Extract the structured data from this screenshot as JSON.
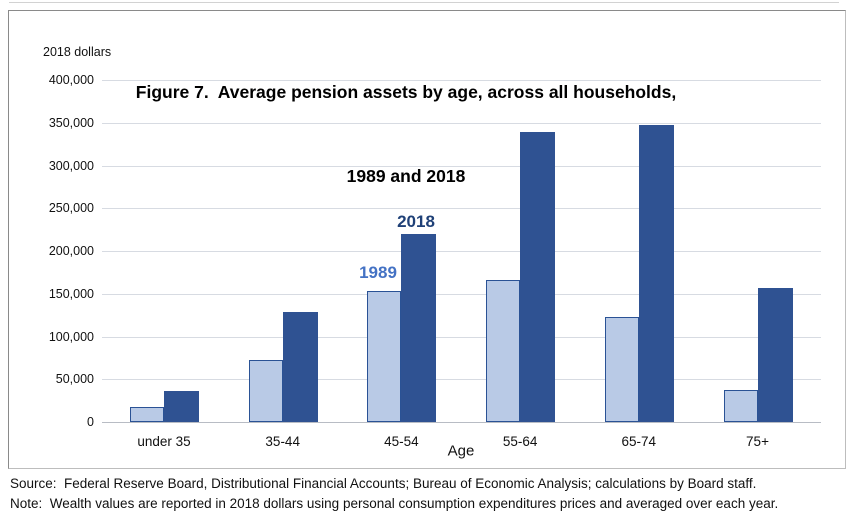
{
  "chart": {
    "title_line1": "Figure 7.  Average pension assets by age, across all households,",
    "title_line2": "1989 and 2018",
    "y_unit_label": "2018 dollars"
  },
  "chart_data": {
    "type": "bar",
    "title": "Figure 7. Average pension assets by age, across all households, 1989 and 2018",
    "xlabel": "Age",
    "ylabel": "2018 dollars",
    "categories": [
      "under 35",
      "35-44",
      "45-54",
      "55-64",
      "65-74",
      "75+"
    ],
    "series": [
      {
        "name": "1989",
        "values": [
          17000,
          73000,
          153000,
          166000,
          123000,
          37000
        ]
      },
      {
        "name": "2018",
        "values": [
          36000,
          129000,
          220000,
          339000,
          347000,
          157000
        ]
      }
    ],
    "ylim": [
      0,
      400000
    ],
    "ytick_step": 50000,
    "ytick_labels": [
      "0",
      "50,000",
      "100,000",
      "150,000",
      "200,000",
      "250,000",
      "300,000",
      "350,000",
      "400,000"
    ],
    "grid": true,
    "legend_position": "inline labels above the 45-54 bars"
  },
  "colors": {
    "series_1989_fill": "#b9cae6",
    "series_1989_border": "#2a5295",
    "series_2018_fill": "#2f5292",
    "series_1989_label_text": "#4472c4",
    "series_2018_label_text": "#1f4077",
    "gridline": "#d7dbe2",
    "title_text": "#000000"
  },
  "footnotes": {
    "source": "Source:  Federal Reserve Board, Distributional Financial Accounts; Bureau of Economic Analysis; calculations by Board staff.",
    "note": "Note:  Wealth values are reported in 2018 dollars using personal consumption expenditures prices and averaged over each year."
  }
}
